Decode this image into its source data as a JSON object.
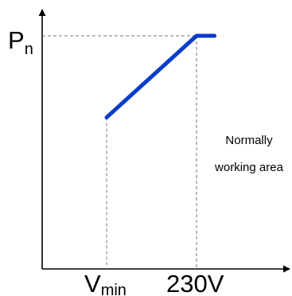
{
  "chart_data": {
    "type": "line",
    "y_tick_label": {
      "base": "P",
      "sub": "n"
    },
    "x_tick_labels": [
      {
        "base": "V",
        "sub": "min"
      },
      {
        "base": "230V",
        "sub": ""
      }
    ],
    "annotation": [
      "Normally",
      "working area"
    ],
    "series": [
      {
        "points": [
          [
            0,
            0.65
          ],
          [
            1,
            1.0
          ],
          [
            1.2,
            1.0
          ]
        ]
      }
    ],
    "colors": {
      "series": "#0a3ccc",
      "axis": "#000000",
      "guide": "#777777"
    }
  }
}
